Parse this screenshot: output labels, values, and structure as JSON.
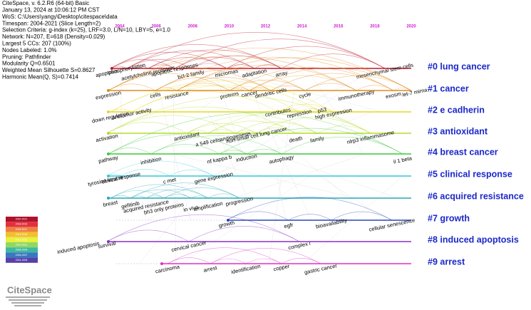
{
  "header": {
    "lines": [
      "CiteSpace, v. 6.2.R6 (64-bit) Basic",
      "January 13, 2024 at 10:06:12 PM CST",
      "WoS: C:\\Users\\yangy\\Desktop\\citespace\\data",
      "Timespan: 2004-2021 (Slice Length=2)",
      "Selection Criteria: g-index (k=25), LRF=3.0, L/N=10, LBY=5, e=1.0",
      "Network: N=207, E=618 (Density=0.029)",
      "Largest 5 CCs: 207 (100%)",
      "Nodes Labeled: 1.0%",
      "Pruning: Pathfinder",
      "Modularity Q=0.6501",
      "Weighted Mean Silhouette S=0.8627",
      "Harmonic Mean(Q, S)=0.7414"
    ]
  },
  "timeline": {
    "years": [
      2004,
      2006,
      2008,
      2010,
      2012,
      2014,
      2016,
      2018,
      2020
    ]
  },
  "clusters": [
    {
      "label": "#0 lung cancer",
      "color": "#c0182a",
      "keywords": [
        "apoptosis",
        "phosphorylation",
        "acetylcholine receptors",
        "apoptotic responses",
        "bcl-2 family",
        "micrornas",
        "adaptation",
        "array",
        "mesenchymal stem cells"
      ]
    },
    {
      "label": "#1 cancer",
      "color": "#e08a1e",
      "keywords": [
        "expression",
        "cells",
        "resistance",
        "proteins",
        "cancer",
        "dendritic cells",
        "cycle",
        "immunotherapy",
        "exosm",
        "let-7 mirna"
      ]
    },
    {
      "label": "#2 e cadherin",
      "color": "#e6d820",
      "keywords": [
        "down regulation",
        "antitumor activity",
        "contributes",
        "repression",
        "p53",
        "high expression"
      ]
    },
    {
      "label": "#3 antioxidant",
      "color": "#b4dc28",
      "keywords": [
        "activation",
        "antioxidant",
        "a 549 cells",
        "angiogenesis",
        "non-small cell lung cancer",
        "death",
        "family",
        "nlrp3 inflammasome"
      ]
    },
    {
      "label": "#4 breast cancer",
      "color": "#3cc83c",
      "keywords": [
        "pathway",
        "inhibition",
        "nf kappa b",
        "induction",
        "autophagy",
        "il 1 beta"
      ]
    },
    {
      "label": "#5 clinical response",
      "color": "#30c8d8",
      "keywords": [
        "tyrosine kinase",
        "clinical response",
        "c met",
        "gene expression"
      ]
    },
    {
      "label": "#6 acquired resistance",
      "color": "#28a8b8",
      "keywords": [
        "breast",
        "gefitinib",
        "acquired resistance",
        "bh3 only proteins",
        "in vivo",
        "amplification",
        "progression"
      ]
    },
    {
      "label": "#7 growth",
      "color": "#2848b8",
      "keywords": [
        "growth",
        "egfr",
        "bioavailability",
        "cellular senescence"
      ]
    },
    {
      "label": "#8 induced apoptosis",
      "color": "#8830c8",
      "keywords": [
        "induced apoptosis",
        "survival",
        "cervical cancer",
        "complex i"
      ]
    },
    {
      "label": "#9 arrest",
      "color": "#e030c8",
      "keywords": [
        "carcinoma",
        "arrest",
        "identification",
        "copper",
        "gastric cancer"
      ]
    }
  ],
  "legend": {
    "labels": [
      "2020-2021",
      "2018-2019",
      "2016-2017",
      "2014-2015",
      "2012-2013",
      "2010-2011",
      "2008-2009",
      "2006-2007",
      "2004-2005"
    ],
    "colors": [
      "#b0102a",
      "#e03040",
      "#f08040",
      "#f0c030",
      "#e8f040",
      "#90d860",
      "#40b8a0",
      "#3878c0",
      "#5840a8"
    ]
  },
  "logo": {
    "text": "CiteSpace"
  }
}
